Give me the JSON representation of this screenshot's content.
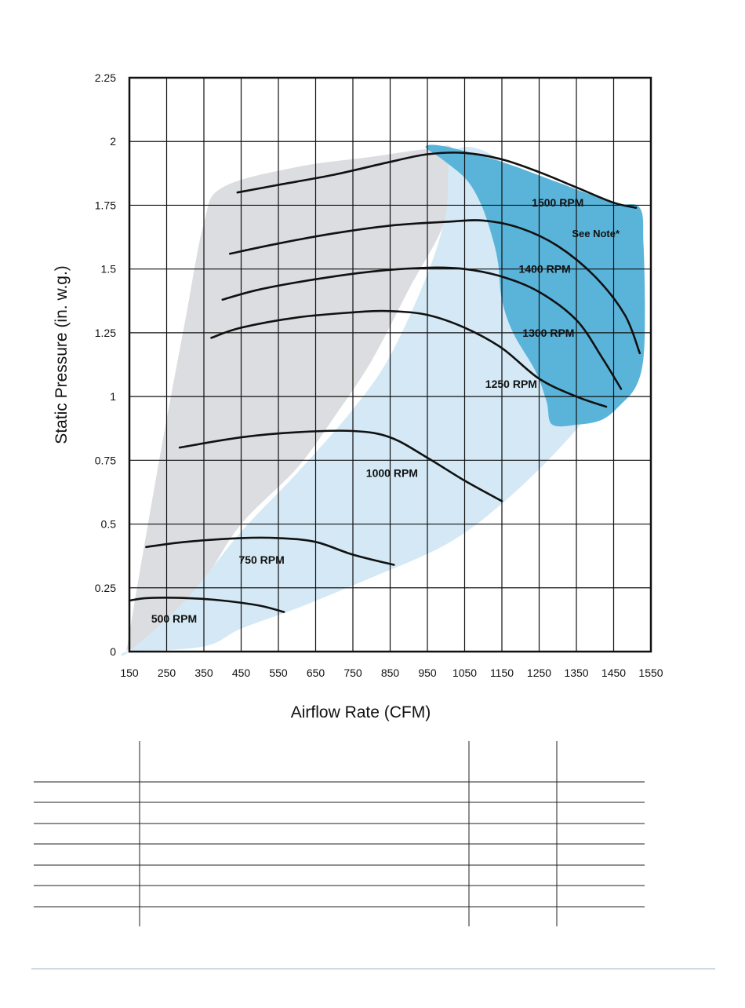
{
  "chart_data": {
    "type": "line",
    "xlabel": "Airflow Rate (CFM)",
    "ylabel": "Static Pressure (in. w.g.)",
    "xlim": [
      150,
      1550
    ],
    "ylim": [
      0,
      2.25
    ],
    "grid": true,
    "x_ticks": [
      "150",
      "250",
      "350",
      "450",
      "550",
      "650",
      "750",
      "850",
      "950",
      "1050",
      "1150",
      "1250",
      "1350",
      "1450",
      "1550"
    ],
    "y_ticks": [
      "0",
      "0.25",
      "0.5",
      "0.75",
      "1",
      "1.25",
      "1.5",
      "1.75",
      "2",
      "2.25"
    ],
    "regions": [
      {
        "name": "gray",
        "color": "#dcdde0",
        "points": [
          [
            150,
            0.07
          ],
          [
            230,
            0.75
          ],
          [
            300,
            1.3
          ],
          [
            350,
            1.68
          ],
          [
            400,
            1.82
          ],
          [
            600,
            1.9
          ],
          [
            800,
            1.94
          ],
          [
            950,
            1.97
          ],
          [
            1020,
            1.96
          ],
          [
            1000,
            1.7
          ],
          [
            900,
            1.42
          ],
          [
            800,
            1.14
          ],
          [
            700,
            0.92
          ],
          [
            600,
            0.72
          ],
          [
            450,
            0.5
          ],
          [
            350,
            0.28
          ],
          [
            220,
            0.05
          ],
          [
            150,
            0.01
          ]
        ]
      },
      {
        "name": "light-blue",
        "color": "#d4e9f5",
        "points": [
          [
            150,
            0.0
          ],
          [
            300,
            0.2
          ],
          [
            450,
            0.47
          ],
          [
            600,
            0.7
          ],
          [
            750,
            0.95
          ],
          [
            850,
            1.16
          ],
          [
            950,
            1.48
          ],
          [
            1000,
            1.72
          ],
          [
            1020,
            1.96
          ],
          [
            1150,
            1.92
          ],
          [
            1350,
            1.58
          ],
          [
            1440,
            1.15
          ],
          [
            1400,
            0.97
          ],
          [
            1300,
            0.79
          ],
          [
            1150,
            0.58
          ],
          [
            1000,
            0.42
          ],
          [
            800,
            0.29
          ],
          [
            600,
            0.17
          ],
          [
            450,
            0.09
          ],
          [
            350,
            0.02
          ],
          [
            150,
            0.0
          ]
        ]
      },
      {
        "name": "medium-blue",
        "color": "#5ab4da",
        "points": [
          [
            945,
            1.98
          ],
          [
            1000,
            1.98
          ],
          [
            1150,
            1.92
          ],
          [
            1300,
            1.84
          ],
          [
            1450,
            1.76
          ],
          [
            1520,
            1.74
          ],
          [
            1530,
            1.6
          ],
          [
            1534,
            1.35
          ],
          [
            1530,
            1.15
          ],
          [
            1510,
            1.04
          ],
          [
            1470,
            0.97
          ],
          [
            1420,
            0.91
          ],
          [
            1355,
            0.89
          ],
          [
            1285,
            0.89
          ],
          [
            1270,
            0.98
          ],
          [
            1240,
            1.1
          ],
          [
            1180,
            1.25
          ],
          [
            1150,
            1.38
          ],
          [
            1140,
            1.52
          ],
          [
            1125,
            1.62
          ],
          [
            1095,
            1.75
          ],
          [
            1055,
            1.85
          ],
          [
            990,
            1.93
          ]
        ]
      }
    ],
    "series": [
      {
        "name": "500 RPM",
        "label": "500 RPM",
        "x": [
          150,
          200,
          300,
          400,
          500,
          565
        ],
        "y": [
          0.2,
          0.21,
          0.21,
          0.2,
          0.18,
          0.155
        ]
      },
      {
        "name": "750 RPM",
        "label": "750 RPM",
        "x": [
          195,
          300,
          450,
          550,
          650,
          750,
          860
        ],
        "y": [
          0.41,
          0.43,
          0.445,
          0.445,
          0.43,
          0.38,
          0.34
        ]
      },
      {
        "name": "1000 RPM",
        "label": "1000 RPM",
        "x": [
          285,
          450,
          600,
          750,
          850,
          950,
          1050,
          1150
        ],
        "y": [
          0.8,
          0.84,
          0.86,
          0.865,
          0.84,
          0.76,
          0.67,
          0.59
        ]
      },
      {
        "name": "1250 RPM",
        "label": "1250 RPM",
        "x": [
          370,
          450,
          600,
          750,
          850,
          950,
          1050,
          1150,
          1250,
          1350,
          1430
        ],
        "y": [
          1.23,
          1.27,
          1.31,
          1.33,
          1.335,
          1.32,
          1.27,
          1.19,
          1.07,
          1.0,
          0.96
        ]
      },
      {
        "name": "1300 RPM",
        "label": "1300 RPM",
        "x": [
          400,
          500,
          650,
          800,
          950,
          1050,
          1150,
          1250,
          1350,
          1420,
          1470
        ],
        "y": [
          1.38,
          1.42,
          1.46,
          1.49,
          1.505,
          1.5,
          1.47,
          1.41,
          1.3,
          1.15,
          1.03
        ]
      },
      {
        "name": "1400 RPM",
        "label": "1400 RPM",
        "x": [
          420,
          550,
          700,
          850,
          1000,
          1100,
          1200,
          1300,
          1400,
          1480,
          1520
        ],
        "y": [
          1.56,
          1.6,
          1.64,
          1.67,
          1.685,
          1.69,
          1.66,
          1.59,
          1.47,
          1.32,
          1.17
        ]
      },
      {
        "name": "1500 RPM",
        "label": "1500 RPM",
        "x": [
          440,
          550,
          700,
          850,
          950,
          1050,
          1150,
          1250,
          1350,
          1450,
          1510
        ],
        "y": [
          1.8,
          1.83,
          1.87,
          1.92,
          1.95,
          1.955,
          1.93,
          1.88,
          1.82,
          1.76,
          1.74
        ]
      }
    ],
    "annotations": [
      {
        "id": "rpm500",
        "text": "500 RPM",
        "x": 270,
        "y": 0.13
      },
      {
        "id": "rpm750",
        "text": "750 RPM",
        "x": 505,
        "y": 0.36
      },
      {
        "id": "rpm1000",
        "text": "1000 RPM",
        "x": 855,
        "y": 0.7
      },
      {
        "id": "rpm1250",
        "text": "1250 RPM",
        "x": 1175,
        "y": 1.05
      },
      {
        "id": "rpm1300",
        "text": "1300 RPM",
        "x": 1275,
        "y": 1.25
      },
      {
        "id": "rpm1400",
        "text": "1400 RPM",
        "x": 1265,
        "y": 1.5
      },
      {
        "id": "rpm1500",
        "text": "1500 RPM",
        "x": 1300,
        "y": 1.76
      },
      {
        "id": "see-note",
        "text": "See Note*",
        "x": 1402,
        "y": 1.64
      }
    ]
  },
  "table": {
    "rows": 8,
    "columns": 4
  }
}
